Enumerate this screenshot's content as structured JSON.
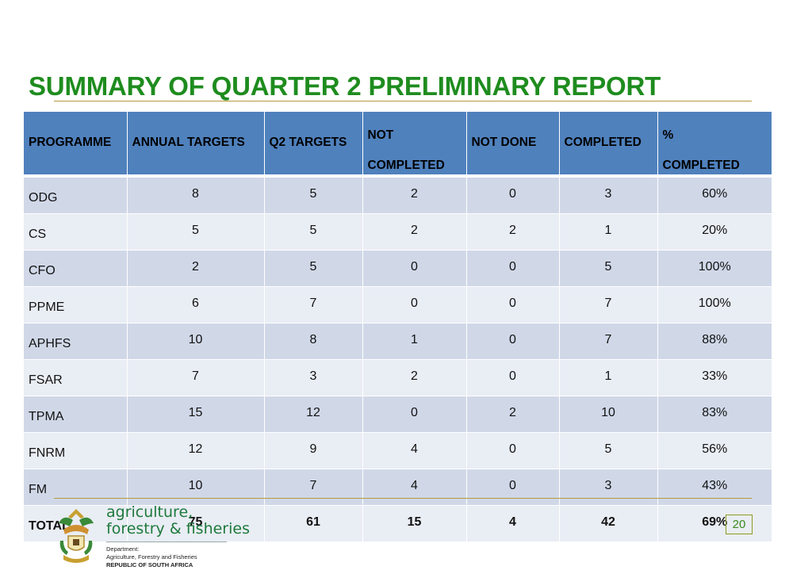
{
  "slide": {
    "title": "SUMMARY OF QUARTER 2 PRELIMINARY REPORT",
    "page_number": "20"
  },
  "table": {
    "headers": [
      {
        "line1": "PROGRAMME",
        "line2": ""
      },
      {
        "line1": "ANNUAL TARGETS",
        "line2": ""
      },
      {
        "line1": "Q2 TARGETS",
        "line2": ""
      },
      {
        "line1": "NOT",
        "line2": "COMPLETED"
      },
      {
        "line1": "NOT DONE",
        "line2": ""
      },
      {
        "line1": "COMPLETED",
        "line2": ""
      },
      {
        "line1": "%",
        "line2": "COMPLETED"
      }
    ],
    "rows": [
      [
        "ODG",
        "8",
        "5",
        "2",
        "0",
        "3",
        "60%"
      ],
      [
        "CS",
        "5",
        "5",
        "2",
        "2",
        "1",
        "20%"
      ],
      [
        "CFO",
        "2",
        "5",
        "0",
        "0",
        "5",
        "100%"
      ],
      [
        "PPME",
        "6",
        "7",
        "0",
        "0",
        "7",
        "100%"
      ],
      [
        "APHFS",
        "10",
        "8",
        "1",
        "0",
        "7",
        "88%"
      ],
      [
        "FSAR",
        "7",
        "3",
        "2",
        "0",
        "1",
        "33%"
      ],
      [
        "TPMA",
        "15",
        "12",
        "0",
        "2",
        "10",
        "83%"
      ],
      [
        "FNRM",
        "12",
        "9",
        "4",
        "0",
        "5",
        "56%"
      ],
      [
        "FM",
        "10",
        "7",
        "4",
        "0",
        "3",
        "43%"
      ],
      [
        "TOTAL",
        "75",
        "61",
        "15",
        "4",
        "42",
        "69%"
      ]
    ]
  },
  "logo": {
    "line1": "agriculture,",
    "line2": "forestry & fisheries",
    "dept1": "Department:",
    "dept2": "Agriculture, Forestry and Fisheries",
    "dept3": "REPUBLIC OF SOUTH AFRICA"
  },
  "colors": {
    "title": "#1e8c1e",
    "header_bg": "#4f81bd",
    "row_odd": "#d0d8e8",
    "row_even": "#e9edf4",
    "rule": "#b89a3a"
  }
}
